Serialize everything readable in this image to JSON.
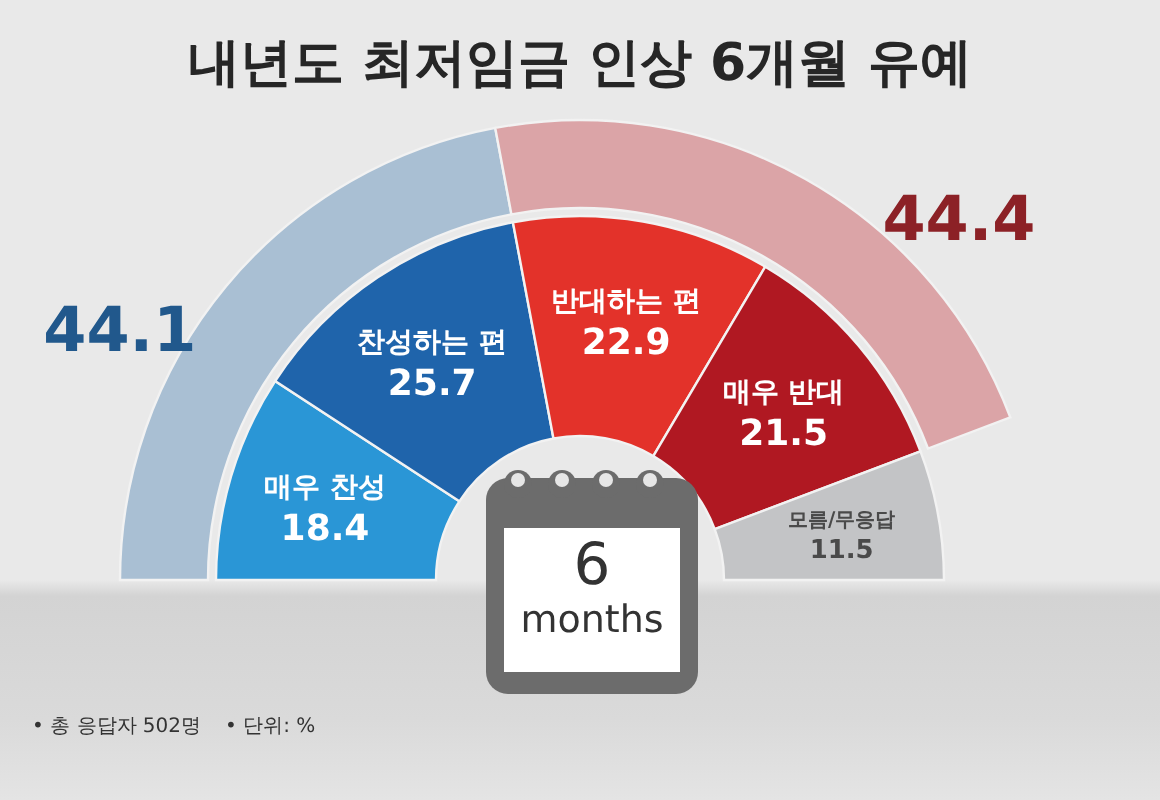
{
  "chart_data": [
    {
      "type": "donut",
      "title": "내년도 최저임금 인상 6개월 유예",
      "categories": [
        "매우 찬성",
        "찬성하는 편",
        "반대하는 편",
        "매우 반대",
        "모름/무응답"
      ],
      "values": [
        18.4,
        25.7,
        22.9,
        21.5,
        11.5
      ],
      "colors": [
        "#2a96d6",
        "#1f64ab",
        "#e3322a",
        "#b01822",
        "#c3c4c6"
      ],
      "data_labels": true,
      "annotations": [
        "6 months",
        "• 총 응답자 502명",
        "• 단위: %"
      ]
    },
    {
      "type": "donut",
      "categories": [
        null,
        null
      ],
      "values": [
        44.1,
        44.4
      ],
      "colors": [
        "#a9bfd3",
        "#dba4a7"
      ],
      "data_labels": true
    }
  ]
}
